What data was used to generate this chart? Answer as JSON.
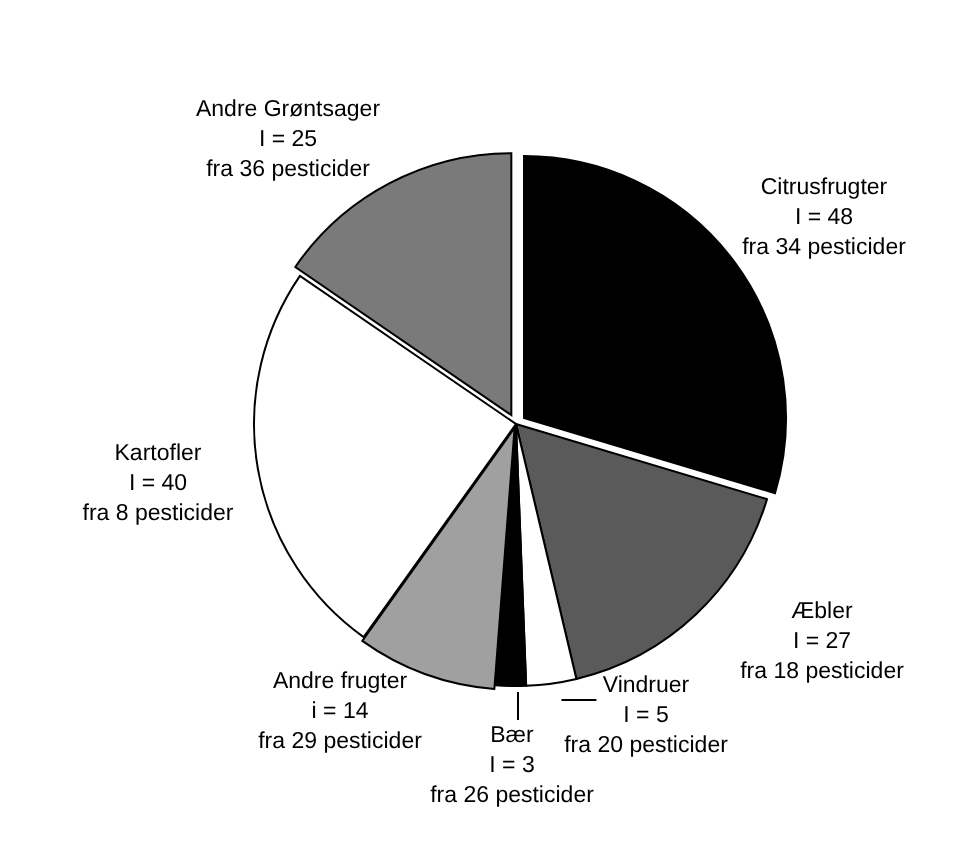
{
  "chart_data": {
    "type": "pie",
    "categories": [
      "Citrusfrugter",
      "Æbler",
      "Vindruer",
      "Bær",
      "Andre frugter",
      "Kartofler",
      "Andre Grøntsager"
    ],
    "values": [
      48,
      27,
      5,
      3,
      14,
      40,
      25
    ],
    "colors": [
      "#000000",
      "#5a5a5a",
      "#ffffff",
      "#000000",
      "#a0a0a0",
      "#ffffff",
      "#7a7a7a"
    ],
    "value_labels": [
      "I = 48",
      "I = 27",
      "I = 5",
      "I = 3",
      "i = 14",
      "I = 40",
      "I = 25"
    ],
    "annotations": [
      "fra 34 pesticider",
      "fra 18 pesticider",
      "fra 20 pesticider",
      "fra 26 pesticider",
      "fra 29 pesticider",
      "fra 8 pesticider",
      "fra 36 pesticider"
    ]
  }
}
